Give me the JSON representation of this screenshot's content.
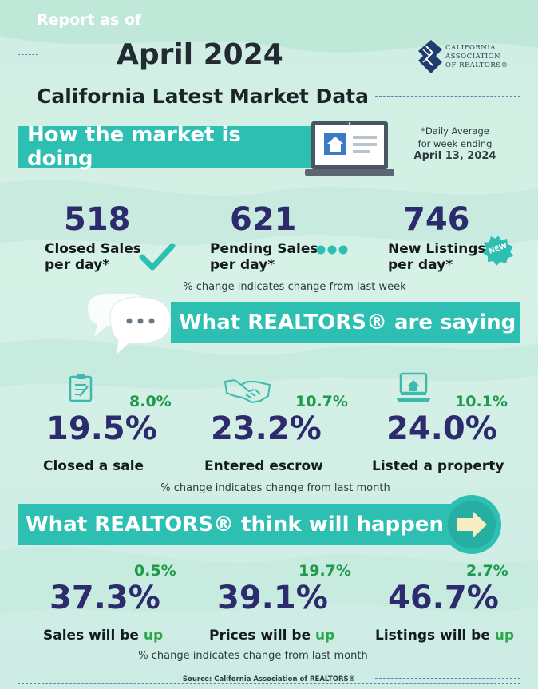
{
  "header": {
    "report_as_of": "Report as of",
    "month": "April 2024",
    "subtitle": "California Latest Market Data",
    "logo_lines": [
      "CALIFORNIA",
      "ASSOCIATION",
      "OF REALTORS®"
    ]
  },
  "market": {
    "banner": "How the market is doing",
    "daily_note": [
      "*Daily Average",
      "for week ending",
      "April 13, 2024"
    ],
    "stats": [
      {
        "value": "518",
        "label_line1": "Closed Sales",
        "label_line2": "per day*",
        "icon": "checkmark-icon"
      },
      {
        "value": "621",
        "label_line1": "Pending Sales",
        "label_line2": "per day*",
        "icon": "dots-icon"
      },
      {
        "value": "746",
        "label_line1": "New Listings",
        "label_line2": "per day*",
        "icon": "new-badge-icon",
        "badge_text": "NEW"
      }
    ],
    "change_note": "% change indicates change from last week"
  },
  "saying": {
    "banner": "What REALTORS® are saying",
    "stats": [
      {
        "value": "19.5%",
        "change": "8.0%",
        "label": "Closed a sale",
        "icon": "clipboard-icon"
      },
      {
        "value": "23.2%",
        "change": "10.7%",
        "label": "Entered escrow",
        "icon": "handshake-icon"
      },
      {
        "value": "24.0%",
        "change": "10.1%",
        "label": "Listed a property",
        "icon": "laptop-home-icon"
      }
    ],
    "change_note": "% change indicates change from last month"
  },
  "think": {
    "banner": "What REALTORS® think will happen",
    "stats": [
      {
        "value": "37.3%",
        "change": "0.5%",
        "label_prefix": "Sales will be ",
        "label_up": "up"
      },
      {
        "value": "39.1%",
        "change": "19.7%",
        "label_prefix": "Prices will be ",
        "label_up": "up"
      },
      {
        "value": "46.7%",
        "change": "2.7%",
        "label_prefix": "Listings will be ",
        "label_up": "up"
      }
    ],
    "change_note": "% change indicates change from last month"
  },
  "source": "Source: California Association of REALTORS®",
  "colors": {
    "banner": "#2ebfb3",
    "value": "#2d2a6e",
    "change": "#1f9a4a",
    "up": "#2ba84a",
    "background": "#cfeee3"
  }
}
